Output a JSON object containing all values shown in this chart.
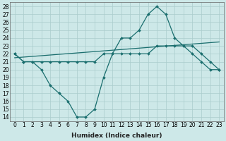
{
  "xlabel": "Humidex (Indice chaleur)",
  "bg_color": "#cde8e8",
  "grid_color": "#aacccc",
  "line_color": "#1a6e6e",
  "curve1_x": [
    0,
    1,
    2,
    3,
    4,
    5,
    6,
    7,
    8,
    9,
    10,
    11,
    12,
    13,
    14,
    15,
    16,
    17,
    18,
    19,
    20,
    21,
    22,
    23
  ],
  "curve1_y": [
    22,
    21,
    21,
    20,
    18,
    17,
    16,
    14,
    14,
    15,
    19,
    22,
    24,
    24,
    25,
    27,
    28,
    27,
    24,
    23,
    22,
    21,
    20,
    20
  ],
  "curve2_x": [
    0,
    1,
    2,
    3,
    4,
    5,
    6,
    7,
    8,
    9,
    10,
    11,
    12,
    13,
    14,
    15,
    16,
    17,
    18,
    19,
    20,
    21,
    22,
    23
  ],
  "curve2_y": [
    22,
    21,
    21,
    21,
    21,
    21,
    21,
    21,
    21,
    21,
    22,
    22,
    22,
    22,
    22,
    22,
    23,
    23,
    23,
    23,
    23,
    22,
    21,
    20
  ],
  "line_x": [
    0,
    23
  ],
  "line_y": [
    21.5,
    23.5
  ],
  "ylim": [
    13.5,
    28.5
  ],
  "xlim": [
    -0.5,
    23.5
  ],
  "yticks": [
    14,
    15,
    16,
    17,
    18,
    19,
    20,
    21,
    22,
    23,
    24,
    25,
    26,
    27,
    28
  ],
  "xticks": [
    0,
    1,
    2,
    3,
    4,
    5,
    6,
    7,
    8,
    9,
    10,
    11,
    12,
    13,
    14,
    15,
    16,
    17,
    18,
    19,
    20,
    21,
    22,
    23
  ],
  "tick_fontsize": 5.5,
  "label_fontsize": 6.5
}
